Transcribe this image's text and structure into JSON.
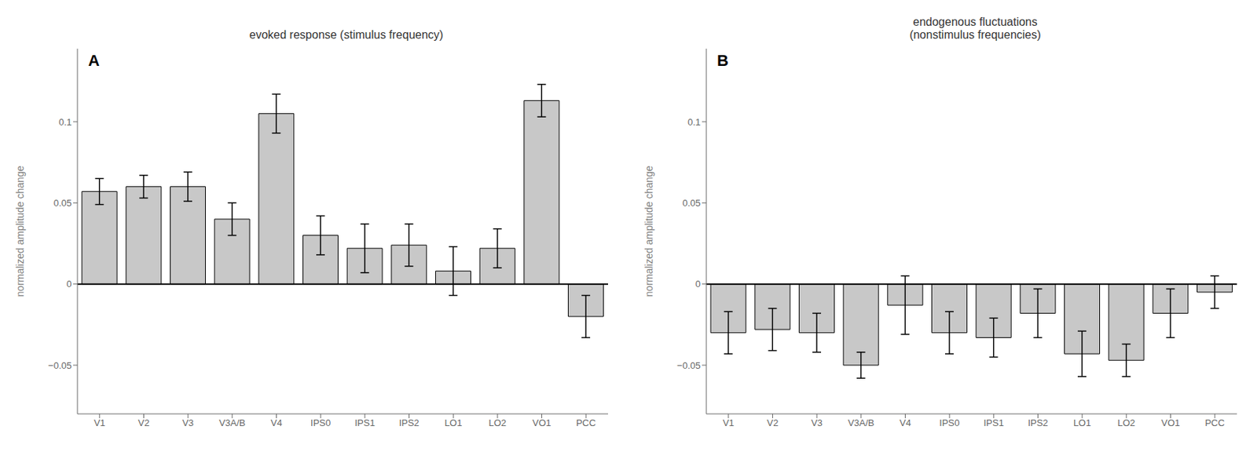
{
  "chart_data": [
    {
      "type": "bar",
      "title": "evoked response (stimulus frequency)",
      "annotation": "A",
      "categories": [
        "V1",
        "V2",
        "V3",
        "V3A/B",
        "V4",
        "IPS0",
        "IPS1",
        "IPS2",
        "LO1",
        "LO2",
        "VO1",
        "PCC"
      ],
      "values": [
        0.057,
        0.06,
        0.06,
        0.04,
        0.105,
        0.03,
        0.022,
        0.024,
        0.008,
        0.022,
        0.113,
        -0.02
      ],
      "errors": [
        0.008,
        0.007,
        0.009,
        0.01,
        0.012,
        0.012,
        0.015,
        0.013,
        0.015,
        0.012,
        0.01,
        0.013
      ],
      "ylim": [
        -0.08,
        0.145
      ],
      "yticks": [
        {
          "value": -0.05,
          "label": "−0.05"
        },
        0,
        0.05,
        0.1
      ],
      "ylabel": "normalized amplitude change",
      "color": "#c8c8c8",
      "grid": false
    },
    {
      "type": "bar",
      "title": "endogenous fluctuations\n(nonstimulus frequencies)",
      "annotation": "B",
      "categories": [
        "V1",
        "V2",
        "V3",
        "V3A/B",
        "V4",
        "IPS0",
        "IPS1",
        "IPS2",
        "LO1",
        "LO2",
        "VO1",
        "PCC"
      ],
      "values": [
        -0.03,
        -0.028,
        -0.03,
        -0.05,
        -0.013,
        -0.03,
        -0.033,
        -0.018,
        -0.043,
        -0.047,
        -0.018,
        -0.005
      ],
      "errors": [
        0.013,
        0.013,
        0.012,
        0.008,
        0.018,
        0.013,
        0.012,
        0.015,
        0.014,
        0.01,
        0.015,
        0.01
      ],
      "ylim": [
        -0.08,
        0.145
      ],
      "yticks": [
        {
          "value": -0.05,
          "label": "−0.05"
        },
        0,
        0.05,
        0.1
      ],
      "ylabel": "normalized amplitude change",
      "color": "#c8c8c8",
      "grid": false
    }
  ]
}
